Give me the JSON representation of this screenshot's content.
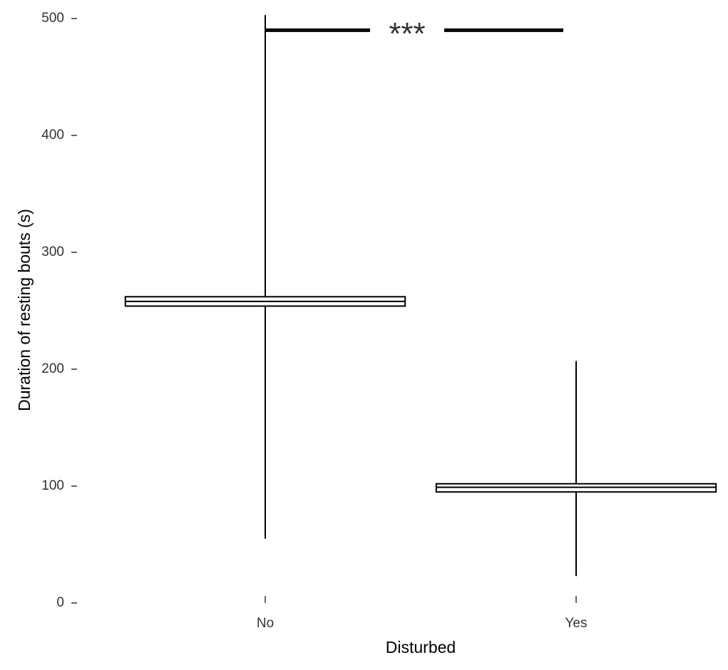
{
  "chart_data": {
    "type": "box",
    "x_label": "Disturbed",
    "y_label": "Duration of resting bouts (s)",
    "categories": [
      "No",
      "Yes"
    ],
    "low": [
      55,
      23
    ],
    "q1": [
      254,
      95
    ],
    "median": [
      258,
      99
    ],
    "q3": [
      262,
      102
    ],
    "high": [
      503,
      207
    ],
    "color": "#000000",
    "ylim": [
      0,
      500
    ],
    "yticks": [
      0,
      100,
      200,
      300,
      400,
      500
    ],
    "annotation": {
      "label": "***",
      "y": 490
    }
  }
}
